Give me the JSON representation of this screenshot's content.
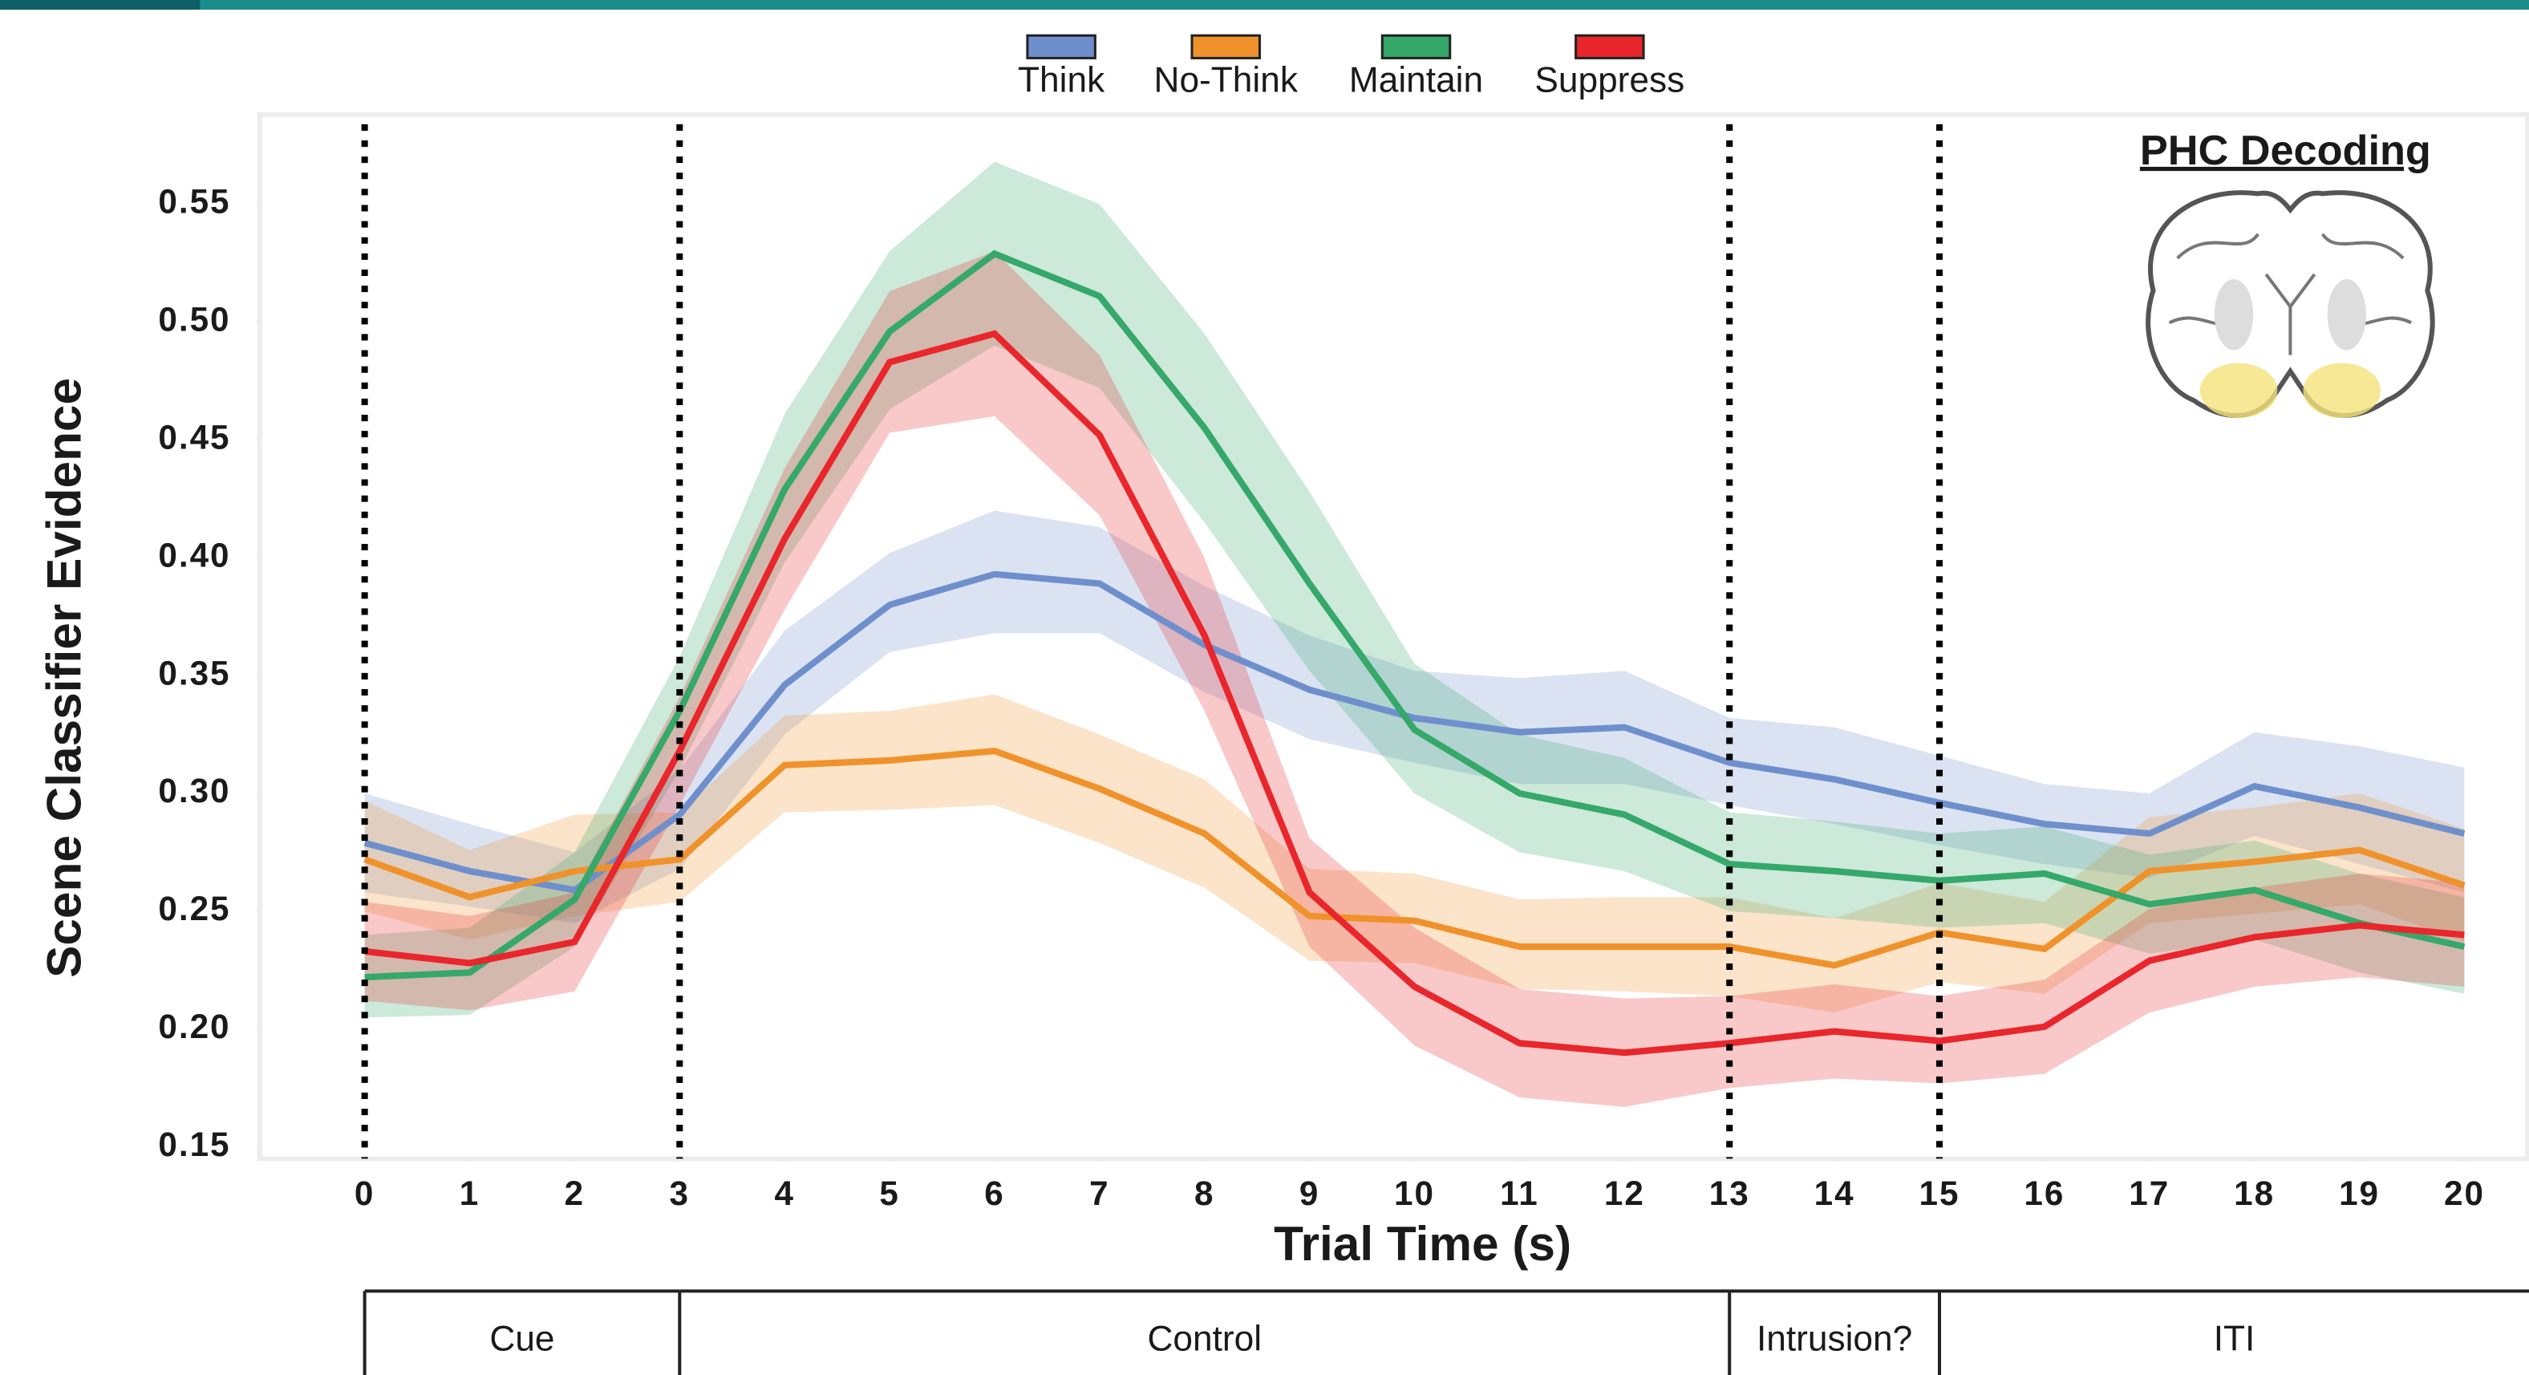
{
  "chart_data": {
    "type": "line",
    "annotation": "PHC Decoding",
    "xlabel": "Trial Time (s)",
    "ylabel": "Scene Classifier Evidence",
    "x": [
      0,
      1,
      2,
      3,
      4,
      5,
      6,
      7,
      8,
      9,
      10,
      11,
      12,
      13,
      14,
      15,
      16,
      17,
      18,
      19,
      20
    ],
    "xlim": [
      -1,
      20.6
    ],
    "xticks": [
      0,
      1,
      2,
      3,
      4,
      5,
      6,
      7,
      8,
      9,
      10,
      11,
      12,
      13,
      14,
      15,
      16,
      17,
      18,
      19,
      20
    ],
    "ylim": [
      0.145,
      0.588
    ],
    "yticks": [
      0.15,
      {
        "value": 0.2,
        "label": "0.20"
      },
      0.25,
      {
        "value": 0.3,
        "label": "0.30"
      },
      0.35,
      {
        "value": 0.4,
        "label": "0.40"
      },
      0.45,
      {
        "value": 0.5,
        "label": "0.50"
      },
      0.55
    ],
    "vlines": [
      0,
      3,
      13,
      15
    ],
    "phases": [
      {
        "label": "Cue",
        "start": 0,
        "end": 3
      },
      {
        "label": "Control",
        "start": 3,
        "end": 13
      },
      {
        "label": "Intrusion?",
        "start": 13,
        "end": 15
      },
      {
        "label": "ITI",
        "start": 15
      }
    ],
    "series": [
      {
        "name": "Think",
        "color": "#6f8fcc",
        "values": [
          0.279,
          0.267,
          0.259,
          0.291,
          0.346,
          0.38,
          0.393,
          0.389,
          0.363,
          0.344,
          0.332,
          0.326,
          0.328,
          0.313,
          0.306,
          0.296,
          0.287,
          0.283,
          0.303,
          0.294,
          0.283
        ],
        "band_lower": [
          0.258,
          0.252,
          0.245,
          0.268,
          0.325,
          0.36,
          0.368,
          0.368,
          0.343,
          0.323,
          0.313,
          0.304,
          0.304,
          0.295,
          0.287,
          0.278,
          0.27,
          0.264,
          0.282,
          0.27,
          0.258
        ],
        "band_upper": [
          0.3,
          0.287,
          0.275,
          0.31,
          0.369,
          0.402,
          0.42,
          0.413,
          0.388,
          0.367,
          0.352,
          0.349,
          0.352,
          0.332,
          0.328,
          0.316,
          0.304,
          0.3,
          0.326,
          0.32,
          0.311
        ]
      },
      {
        "name": "No-Think",
        "color": "#f0922b",
        "values": [
          0.272,
          0.256,
          0.267,
          0.272,
          0.312,
          0.314,
          0.318,
          0.302,
          0.283,
          0.248,
          0.246,
          0.235,
          0.235,
          0.235,
          0.227,
          0.241,
          0.234,
          0.267,
          0.271,
          0.276,
          0.261
        ],
        "band_lower": [
          0.25,
          0.238,
          0.248,
          0.254,
          0.292,
          0.293,
          0.295,
          0.279,
          0.26,
          0.229,
          0.228,
          0.217,
          0.216,
          0.214,
          0.207,
          0.22,
          0.215,
          0.245,
          0.249,
          0.253,
          0.237
        ],
        "band_upper": [
          0.297,
          0.276,
          0.291,
          0.292,
          0.333,
          0.335,
          0.342,
          0.325,
          0.306,
          0.268,
          0.266,
          0.255,
          0.256,
          0.256,
          0.247,
          0.262,
          0.254,
          0.29,
          0.294,
          0.3,
          0.285
        ]
      },
      {
        "name": "Maintain",
        "color": "#35a86a",
        "values": [
          0.222,
          0.224,
          0.255,
          0.335,
          0.429,
          0.496,
          0.529,
          0.511,
          0.455,
          0.389,
          0.327,
          0.3,
          0.291,
          0.27,
          0.267,
          0.263,
          0.266,
          0.253,
          0.259,
          0.245,
          0.235
        ],
        "band_lower": [
          0.205,
          0.206,
          0.235,
          0.31,
          0.398,
          0.463,
          0.49,
          0.472,
          0.415,
          0.352,
          0.3,
          0.275,
          0.267,
          0.25,
          0.247,
          0.243,
          0.245,
          0.232,
          0.238,
          0.224,
          0.215
        ],
        "band_upper": [
          0.24,
          0.243,
          0.275,
          0.358,
          0.461,
          0.53,
          0.568,
          0.55,
          0.495,
          0.428,
          0.355,
          0.325,
          0.315,
          0.292,
          0.288,
          0.283,
          0.286,
          0.274,
          0.28,
          0.266,
          0.256
        ]
      },
      {
        "name": "Suppress",
        "color": "#e8262b",
        "values": [
          0.233,
          0.228,
          0.237,
          0.318,
          0.408,
          0.483,
          0.495,
          0.452,
          0.367,
          0.258,
          0.218,
          0.194,
          0.19,
          0.194,
          0.199,
          0.195,
          0.201,
          0.229,
          0.239,
          0.244,
          0.24
        ],
        "band_lower": [
          0.212,
          0.208,
          0.216,
          0.295,
          0.378,
          0.453,
          0.46,
          0.418,
          0.335,
          0.235,
          0.193,
          0.171,
          0.167,
          0.175,
          0.179,
          0.177,
          0.181,
          0.207,
          0.218,
          0.222,
          0.218
        ],
        "band_upper": [
          0.254,
          0.248,
          0.258,
          0.341,
          0.438,
          0.513,
          0.53,
          0.486,
          0.4,
          0.281,
          0.243,
          0.217,
          0.213,
          0.214,
          0.219,
          0.214,
          0.221,
          0.251,
          0.26,
          0.266,
          0.262
        ]
      }
    ]
  }
}
